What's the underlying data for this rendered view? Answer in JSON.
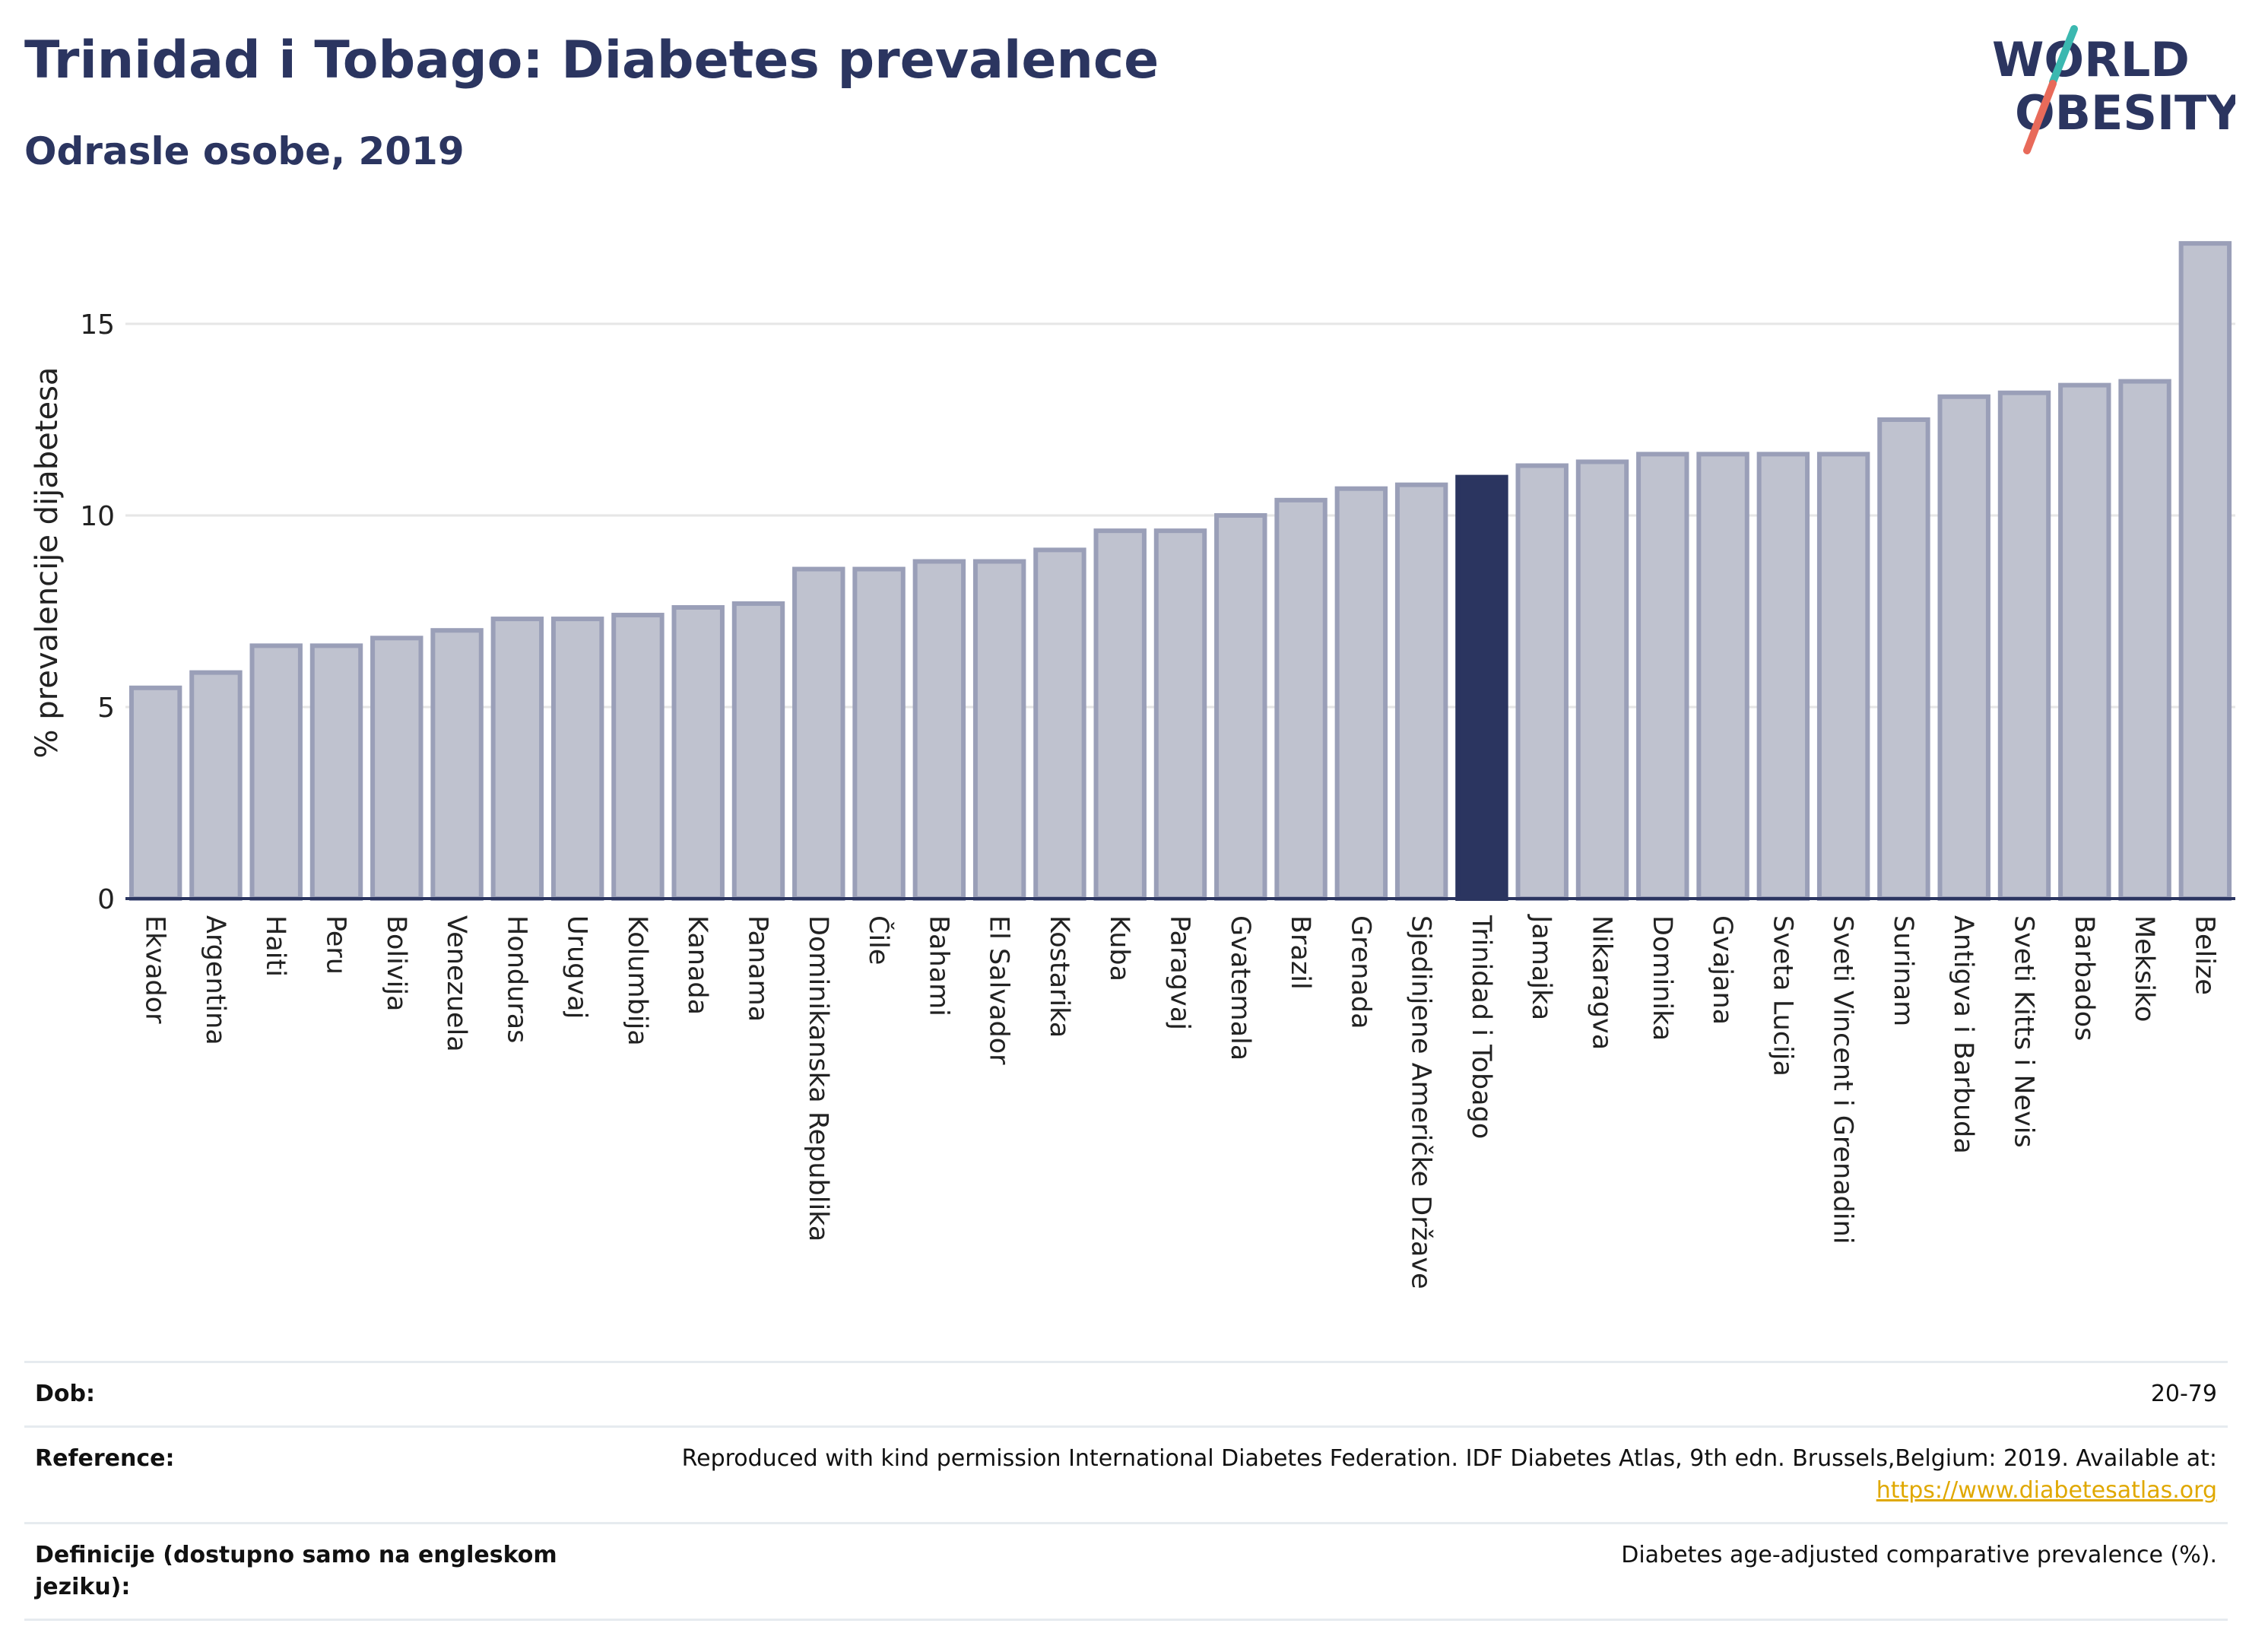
{
  "header": {
    "title": "Trinidad i Tobago: Diabetes prevalence",
    "subtitle": "Odrasle osobe, 2019"
  },
  "logo": {
    "line1": "WORLD",
    "line2": "OBESITY",
    "colors": {
      "text": "#2b3560",
      "slash_top": "#3bb8b0",
      "slash_bottom": "#e86a5a"
    }
  },
  "chart_data": {
    "type": "bar",
    "title": "",
    "xlabel": "",
    "ylabel": "% prevalencije dijabetesa",
    "ylim": [
      0,
      17.5
    ],
    "yticks": [
      0,
      5,
      10,
      15
    ],
    "grid": true,
    "highlight": "Trinidad i Tobago",
    "colors": {
      "bar": "#bfc2cf",
      "bar_edge": "#9a9fb8",
      "highlight": "#2b3560"
    },
    "categories": [
      "Ekvador",
      "Argentina",
      "Haiti",
      "Peru",
      "Bolivija",
      "Venezuela",
      "Honduras",
      "Urugvaj",
      "Kolumbija",
      "Kanada",
      "Panama",
      "Dominikanska Republika",
      "Čile",
      "Bahami",
      "El Salvador",
      "Kostarika",
      "Kuba",
      "Paragvaj",
      "Gvatemala",
      "Brazil",
      "Grenada",
      "Sjedinjene Američke Države",
      "Trinidad i Tobago",
      "Jamajka",
      "Nikaragva",
      "Dominika",
      "Gvajana",
      "Sveta Lucija",
      "Sveti Vincent i Grenadini",
      "Surinam",
      "Antigva i Barbuda",
      "Sveti Kitts i Nevis",
      "Barbados",
      "Meksiko",
      "Belize"
    ],
    "values": [
      5.5,
      5.9,
      6.6,
      6.6,
      6.8,
      7.0,
      7.3,
      7.3,
      7.4,
      7.6,
      7.7,
      8.6,
      8.6,
      8.8,
      8.8,
      9.1,
      9.6,
      9.6,
      10.0,
      10.4,
      10.7,
      10.8,
      11.0,
      11.3,
      11.4,
      11.6,
      11.6,
      11.6,
      11.6,
      12.5,
      13.1,
      13.2,
      13.4,
      13.5,
      17.1
    ]
  },
  "info": {
    "age_label": "Dob:",
    "age_value": "20-79",
    "reference_label": "Reference:",
    "reference_text": "Reproduced with kind permission International Diabetes Federation. IDF Diabetes Atlas, 9th edn. Brussels,Belgium: 2019. Available at:",
    "reference_link": "https://www.diabetesatlas.org",
    "definition_label": "Definicije (dostupno samo na engleskom jeziku):",
    "definition_value": "Diabetes age-adjusted comparative prevalence (%)."
  }
}
